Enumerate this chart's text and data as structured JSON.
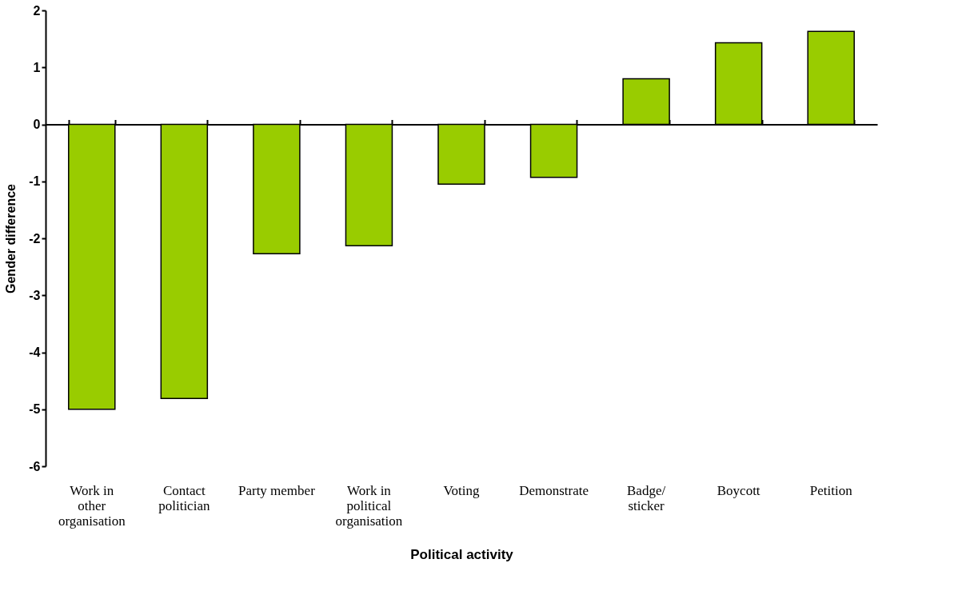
{
  "chart_data": {
    "type": "bar",
    "xlabel": "Political activity",
    "ylabel": "Gender difference",
    "categories": [
      "Work in other organisation",
      "Contact politician",
      "Party member",
      "Work in political organisation",
      "Voting",
      "Demonstrate",
      "Badge/ sticker",
      "Boycott",
      "Petition"
    ],
    "values": [
      -5.0,
      -4.81,
      -2.27,
      -2.13,
      -1.05,
      -0.93,
      0.8,
      1.43,
      1.63
    ],
    "color": "#99cc00",
    "ylim": [
      -6,
      2
    ],
    "yticks": [
      -6,
      -5,
      -4,
      -3,
      -2,
      -1,
      0,
      1,
      2
    ]
  }
}
